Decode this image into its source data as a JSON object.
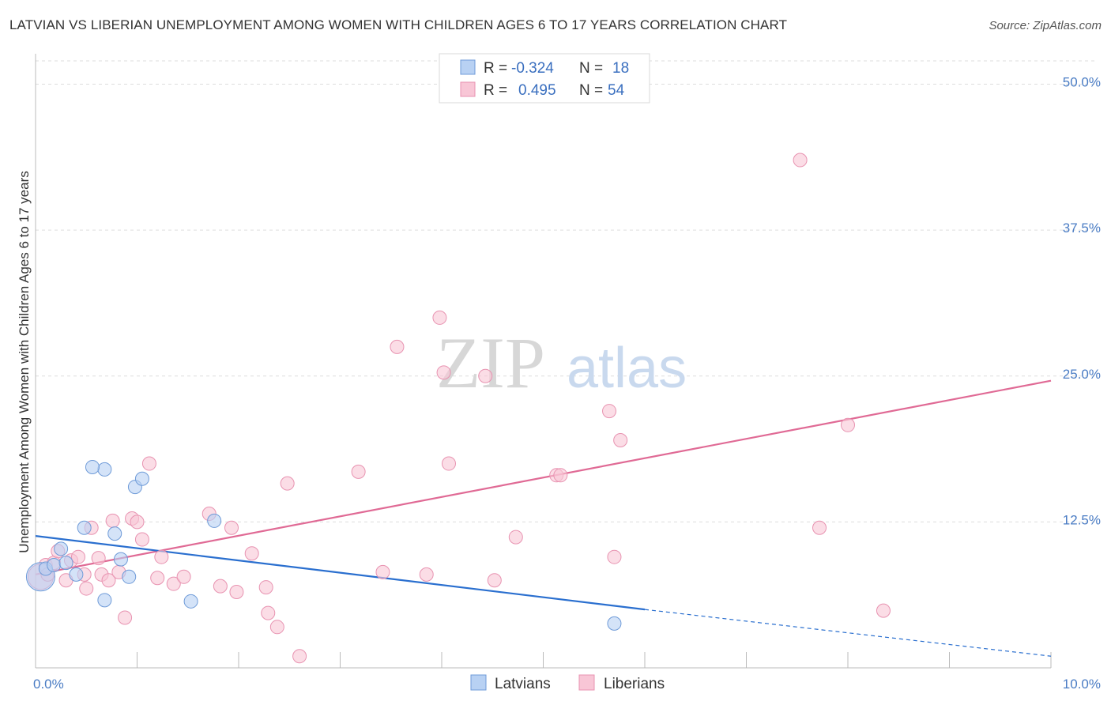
{
  "header": {
    "title": "LATVIAN VS LIBERIAN UNEMPLOYMENT AMONG WOMEN WITH CHILDREN AGES 6 TO 17 YEARS CORRELATION CHART",
    "source": "Source: ZipAtlas.com"
  },
  "watermark": {
    "zip": "ZIP",
    "atlas": "atlas"
  },
  "legend": {
    "latvians": {
      "r_label": "R =",
      "r_value": "-0.324",
      "n_label": "N =",
      "n_value": "18"
    },
    "liberians": {
      "r_label": "R =",
      "r_value": "0.495",
      "n_label": "N =",
      "n_value": "54"
    }
  },
  "bottom_legend": {
    "latvians": "Latvians",
    "liberians": "Liberians"
  },
  "colors": {
    "latvian_fill": "#b8d1f3",
    "latvian_stroke": "#6f9bd8",
    "latvian_line": "#2a6fcf",
    "liberian_fill": "#f8c6d6",
    "liberian_stroke": "#e893b1",
    "liberian_line": "#e06a95",
    "grid": "#dddddd",
    "tick_label": "#4a7cc4"
  },
  "chart_data": {
    "type": "scatter",
    "title": "LATVIAN VS LIBERIAN UNEMPLOYMENT AMONG WOMEN WITH CHILDREN AGES 6 TO 17 YEARS CORRELATION CHART",
    "xlabel": "",
    "ylabel": "Unemployment Among Women with Children Ages 6 to 17 years",
    "xlim": [
      0,
      10
    ],
    "ylim": [
      0,
      52
    ],
    "x_tick_labels": [
      {
        "value": 0,
        "label": "0.0%"
      },
      {
        "value": 10,
        "label": "10.0%"
      }
    ],
    "y_ticks": [
      {
        "value": 12.5,
        "label": "12.5%"
      },
      {
        "value": 25.0,
        "label": "25.0%"
      },
      {
        "value": 37.5,
        "label": "37.5%"
      },
      {
        "value": 50.0,
        "label": "50.0%"
      }
    ],
    "series": [
      {
        "name": "Latvians",
        "points": [
          [
            0.05,
            7.8
          ],
          [
            0.1,
            8.5
          ],
          [
            0.18,
            8.8
          ],
          [
            0.25,
            10.2
          ],
          [
            0.4,
            8.0
          ],
          [
            0.48,
            12.0
          ],
          [
            0.68,
            17.0
          ],
          [
            0.56,
            17.2
          ],
          [
            0.78,
            11.5
          ],
          [
            0.84,
            9.3
          ],
          [
            0.92,
            7.8
          ],
          [
            0.98,
            15.5
          ],
          [
            1.05,
            16.2
          ],
          [
            0.68,
            5.8
          ],
          [
            1.53,
            5.7
          ],
          [
            1.76,
            12.6
          ],
          [
            5.7,
            3.8
          ],
          [
            0.3,
            9.0
          ]
        ],
        "trend": {
          "x": [
            0,
            6.0
          ],
          "y": [
            11.3,
            5.0
          ],
          "dashed_to": [
            10.0,
            1.0
          ]
        }
      },
      {
        "name": "Liberians",
        "points": [
          [
            0.05,
            7.8
          ],
          [
            0.1,
            8.8
          ],
          [
            0.18,
            9.0
          ],
          [
            0.22,
            10.0
          ],
          [
            0.3,
            7.5
          ],
          [
            0.35,
            9.2
          ],
          [
            0.42,
            9.5
          ],
          [
            0.48,
            8.0
          ],
          [
            0.5,
            6.8
          ],
          [
            0.55,
            12.0
          ],
          [
            0.62,
            9.4
          ],
          [
            0.65,
            8.0
          ],
          [
            0.72,
            7.5
          ],
          [
            0.76,
            12.6
          ],
          [
            0.82,
            8.2
          ],
          [
            0.88,
            4.3
          ],
          [
            0.95,
            12.8
          ],
          [
            1.0,
            12.5
          ],
          [
            1.05,
            11.0
          ],
          [
            1.12,
            17.5
          ],
          [
            1.24,
            9.5
          ],
          [
            1.2,
            7.7
          ],
          [
            1.36,
            7.2
          ],
          [
            1.46,
            7.8
          ],
          [
            1.71,
            13.2
          ],
          [
            1.82,
            7.0
          ],
          [
            1.93,
            12.0
          ],
          [
            1.98,
            6.5
          ],
          [
            2.13,
            9.8
          ],
          [
            2.27,
            6.9
          ],
          [
            2.29,
            4.7
          ],
          [
            2.38,
            3.5
          ],
          [
            2.48,
            15.8
          ],
          [
            2.6,
            1.0
          ],
          [
            3.18,
            16.8
          ],
          [
            3.42,
            8.2
          ],
          [
            3.56,
            27.5
          ],
          [
            3.85,
            8.0
          ],
          [
            3.98,
            30.0
          ],
          [
            4.02,
            25.3
          ],
          [
            4.07,
            17.5
          ],
          [
            4.43,
            25.0
          ],
          [
            4.52,
            7.5
          ],
          [
            4.73,
            11.2
          ],
          [
            5.13,
            16.5
          ],
          [
            5.17,
            16.5
          ],
          [
            5.65,
            22.0
          ],
          [
            5.7,
            9.5
          ],
          [
            5.76,
            19.5
          ],
          [
            7.53,
            43.5
          ],
          [
            7.72,
            12.0
          ],
          [
            8.0,
            20.8
          ],
          [
            8.35,
            4.9
          ],
          [
            0.12,
            8.0
          ]
        ],
        "trend": {
          "x": [
            0,
            10.0
          ],
          "y": [
            8.0,
            24.6
          ]
        }
      }
    ]
  }
}
